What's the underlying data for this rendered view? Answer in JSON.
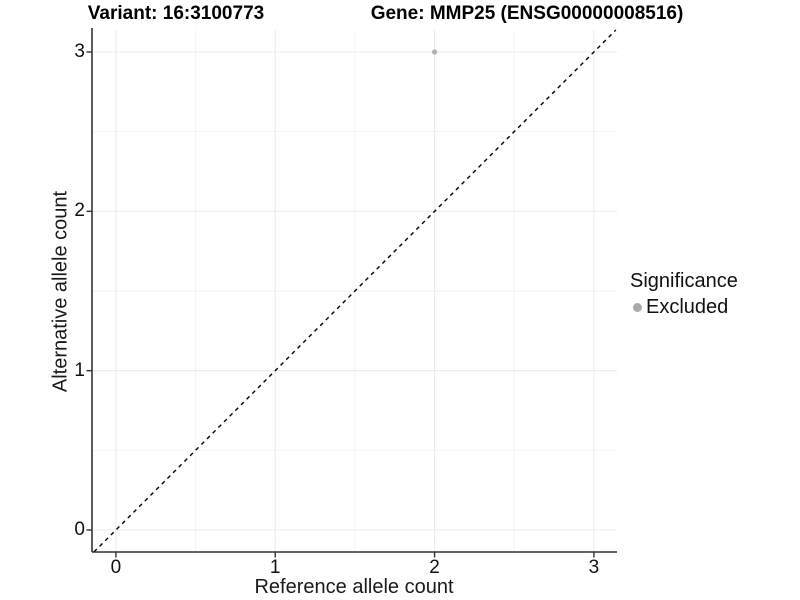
{
  "title_left": "Variant: 16:3100773",
  "title_right": "Gene: MMP25 (ENSG00000008516)",
  "axes": {
    "x_label": "Reference allele count",
    "y_label": "Alternative allele count",
    "x_tick_labels": [
      "0",
      "1",
      "2",
      "3"
    ],
    "y_tick_labels": [
      "0",
      "1",
      "2",
      "3"
    ]
  },
  "legend": {
    "title": "Significance",
    "items": [
      {
        "label": "Excluded",
        "color": "#aaaaaa"
      }
    ]
  },
  "colors": {
    "background": "#ffffff",
    "grid_major": "#ebebeb",
    "grid_minor": "#f2f2f2",
    "axis_line": "#333333",
    "tick_mark": "#333333",
    "point": "#b3b3b3",
    "identity_line": "#000000",
    "title_text": "#000000"
  },
  "chart_data": {
    "type": "scatter",
    "title": "Variant: 16:3100773 | Gene: MMP25 (ENSG00000008516)",
    "xlabel": "Reference allele count",
    "ylabel": "Alternative allele count",
    "xlim": [
      -0.15,
      3.145
    ],
    "ylim": [
      -0.138,
      3.138
    ],
    "x_major_ticks": [
      0,
      1,
      2,
      3
    ],
    "y_major_ticks": [
      0,
      1,
      2,
      3
    ],
    "x_minor_ticks": [
      0.5,
      1.5,
      2.5
    ],
    "y_minor_ticks": [
      0.5,
      1.5,
      2.5
    ],
    "grid": true,
    "legend_position": "right",
    "series": [
      {
        "name": "Excluded",
        "points": [
          {
            "x": 2,
            "y": 3
          }
        ]
      }
    ],
    "reference_line": {
      "slope": 1,
      "intercept": 0,
      "style": "dashed"
    }
  }
}
